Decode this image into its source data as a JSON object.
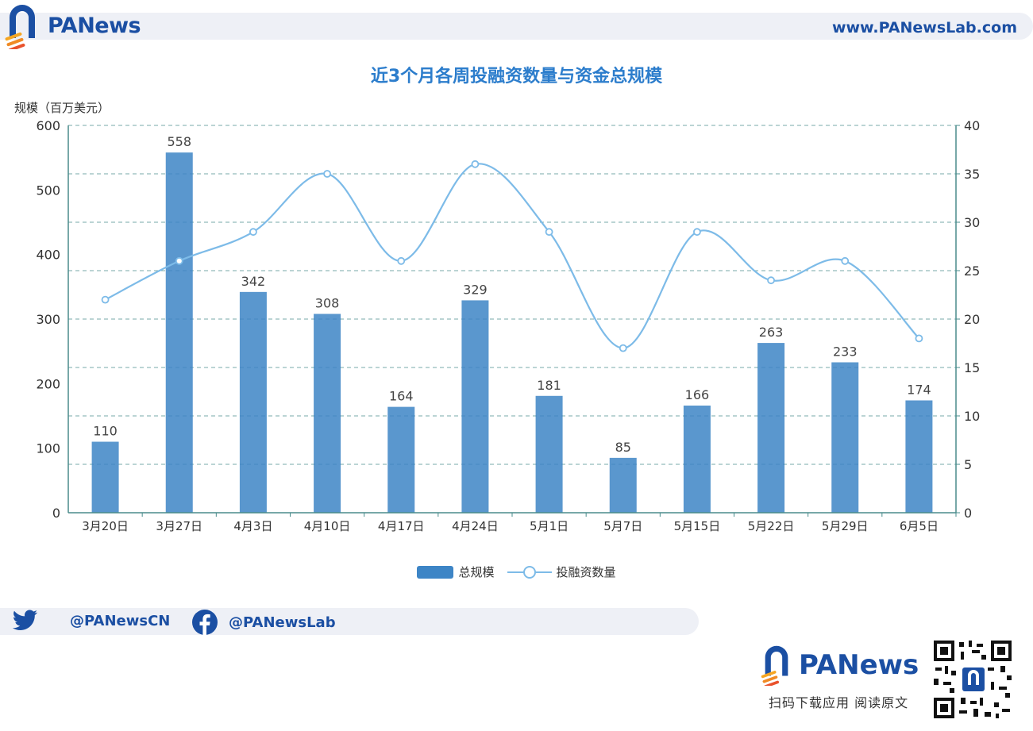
{
  "header": {
    "brand": "PANews",
    "url": "www.PANewsLab.com"
  },
  "footer": {
    "twitter": "@PANewsCN",
    "facebook": "@PANewsLab",
    "brand": "PANews",
    "caption": "扫码下载应用  阅读原文"
  },
  "colors": {
    "bar": "#3d85c6",
    "line": "#7dbbe8",
    "brand": "#1b4fa3",
    "title": "#2c7dcc",
    "grid": "#4a8c8c"
  },
  "chart_data": {
    "type": "bar",
    "title": "近3个月各周投融资数量与资金总规模",
    "ylabel": "规模（百万美元）",
    "ylim": [
      0,
      600
    ],
    "y2lim": [
      0,
      40
    ],
    "yticks": [
      0,
      100,
      200,
      300,
      400,
      500,
      600
    ],
    "y2ticks": [
      0,
      5,
      10,
      15,
      20,
      25,
      30,
      35,
      40
    ],
    "categories": [
      "3月20日",
      "3月27日",
      "4月3日",
      "4月10日",
      "4月17日",
      "4月24日",
      "5月1日",
      "5月7日",
      "5月15日",
      "5月22日",
      "5月29日",
      "6月5日"
    ],
    "series": [
      {
        "name": "总规模",
        "type": "bar",
        "axis": "left",
        "values": [
          110,
          558,
          342,
          308,
          164,
          329,
          181,
          85,
          166,
          263,
          233,
          174
        ]
      },
      {
        "name": "投融资数量",
        "type": "line",
        "axis": "right",
        "values": [
          22,
          26,
          29,
          35,
          26,
          36,
          29,
          17,
          29,
          24,
          26,
          18
        ]
      }
    ],
    "legend_position": "bottom-center",
    "grid": true
  }
}
